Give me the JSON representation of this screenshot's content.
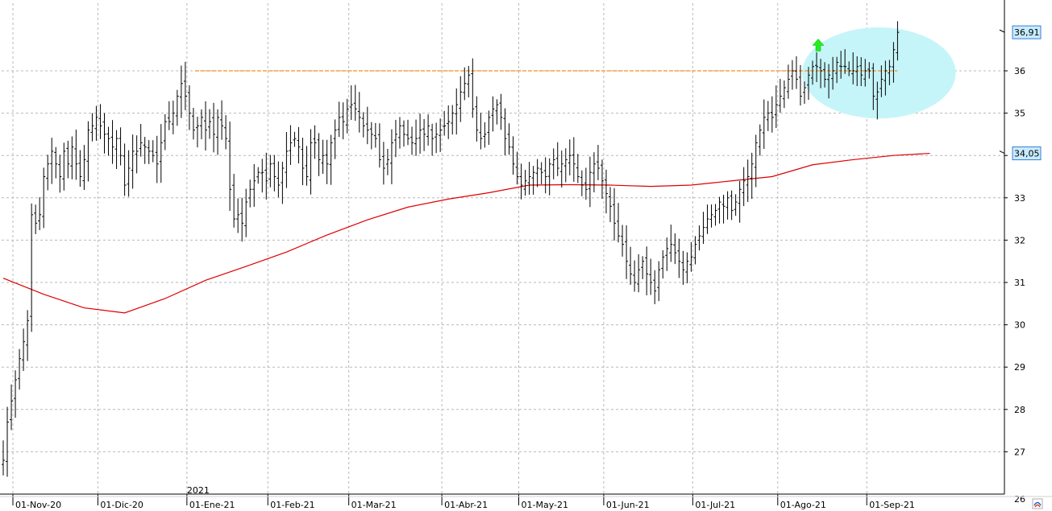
{
  "chart_data": {
    "type": "ohlc",
    "title": "",
    "xlabel": "",
    "ylabel": "",
    "ylim": [
      26,
      36.9
    ],
    "y_ticks": [
      "27",
      "28",
      "29",
      "30",
      "31",
      "32",
      "33",
      "34",
      "35",
      "36"
    ],
    "y_bottom_label": "26",
    "x_ticks": [
      {
        "label": "01-Nov-20",
        "bar": 0
      },
      {
        "label": "01-Dic-20",
        "bar": 21
      },
      {
        "label": "01-Ene-21",
        "bar": 43
      },
      {
        "label": "01-Feb-21",
        "bar": 63
      },
      {
        "label": "01-Mar-21",
        "bar": 83
      },
      {
        "label": "01-Abr-21",
        "bar": 106
      },
      {
        "label": "01-May-21",
        "bar": 125
      },
      {
        "label": "01-Jun-21",
        "bar": 146
      },
      {
        "label": "01-Jul-21",
        "bar": 168
      },
      {
        "label": "01-Ago-21",
        "bar": 189
      },
      {
        "label": "01-Sep-21",
        "bar": 211
      }
    ],
    "year_label": {
      "label": "2021",
      "bar": 43
    },
    "last_price_label": "36,91",
    "ma_price_label": "34,05",
    "resistance_level": 36.0,
    "resistance_from_bar": 47,
    "highlight": {
      "from_bar": 203,
      "to_bar": 229,
      "low": 34.95,
      "high": 36.95
    },
    "closes": [
      26.8,
      27.7,
      28.2,
      28.7,
      29.2,
      29.6,
      30.1,
      32.6,
      32.4,
      32.6,
      33.5,
      33.8,
      34.1,
      33.8,
      33.5,
      34.1,
      33.8,
      34.2,
      33.8,
      33.5,
      33.9,
      34.6,
      34.7,
      34.9,
      34.7,
      34.5,
      34.4,
      34.2,
      34.4,
      34.0,
      33.3,
      33.7,
      34.1,
      34.1,
      34.3,
      34.2,
      34.1,
      34.0,
      33.8,
      34.3,
      34.8,
      34.8,
      35.0,
      35.4,
      35.7,
      35.4,
      35.0,
      34.6,
      34.7,
      34.9,
      34.6,
      34.8,
      34.5,
      34.9,
      34.7,
      34.4,
      33.2,
      32.5,
      32.6,
      32.4,
      32.9,
      33.2,
      33.4,
      33.6,
      33.6,
      33.4,
      33.8,
      33.5,
      33.3,
      33.7,
      34.1,
      34.3,
      34.4,
      34.2,
      33.7,
      33.5,
      34.3,
      34.3,
      33.9,
      34.0,
      33.8,
      34.3,
      34.6,
      34.9,
      34.8,
      35.1,
      35.2,
      35.1,
      34.9,
      34.7,
      34.6,
      34.5,
      34.4,
      33.9,
      33.7,
      33.9,
      34.3,
      34.5,
      34.7,
      34.5,
      34.4,
      34.3,
      34.4,
      34.6,
      34.5,
      34.7,
      34.4,
      34.5,
      34.6,
      34.7,
      34.8,
      35.0,
      35.2,
      35.5,
      35.7,
      35.9,
      35.1,
      34.6,
      34.4,
      34.5,
      34.9,
      35.1,
      35.2,
      34.9,
      34.4,
      34.2,
      33.8,
      33.5,
      33.3,
      33.4,
      33.5,
      33.6,
      33.7,
      33.6,
      33.5,
      33.8,
      33.9,
      33.7,
      33.8,
      33.9,
      34.0,
      33.8,
      33.5,
      33.3,
      33.2,
      33.6,
      33.8,
      33.7,
      33.4,
      33.1,
      32.8,
      32.4,
      32.1,
      31.9,
      31.5,
      31.2,
      31.0,
      31.3,
      31.5,
      31.2,
      31.0,
      30.8,
      31.3,
      31.6,
      31.8,
      31.9,
      31.7,
      31.5,
      31.3,
      31.5,
      31.6,
      31.9,
      32.1,
      32.3,
      32.5,
      32.6,
      32.7,
      32.9,
      32.8,
      33.0,
      32.7,
      32.9,
      33.2,
      33.4,
      33.5,
      33.8,
      34.3,
      34.6,
      34.9,
      35.0,
      34.9,
      35.2,
      35.4,
      35.6,
      35.8,
      36.0,
      35.8,
      35.4,
      35.6,
      35.9,
      36.1,
      36.1,
      36.0,
      35.8,
      35.9,
      36.0,
      36.2,
      36.1,
      36.1,
      36.0,
      36.0,
      36.1,
      35.9,
      36.0,
      36.0,
      35.4,
      35.5,
      35.8,
      36.0,
      36.1,
      36.5,
      36.91
    ],
    "ma_series": {
      "name": "",
      "color": "#dd0000",
      "points": [
        [
          0,
          31.1
        ],
        [
          10,
          30.72
        ],
        [
          20,
          30.4
        ],
        [
          30,
          30.28
        ],
        [
          40,
          30.62
        ],
        [
          50,
          31.05
        ],
        [
          60,
          31.38
        ],
        [
          70,
          31.72
        ],
        [
          80,
          32.12
        ],
        [
          90,
          32.48
        ],
        [
          100,
          32.78
        ],
        [
          110,
          32.97
        ],
        [
          120,
          33.12
        ],
        [
          130,
          33.3
        ],
        [
          140,
          33.31
        ],
        [
          150,
          33.3
        ],
        [
          160,
          33.27
        ],
        [
          170,
          33.3
        ],
        [
          180,
          33.4
        ],
        [
          190,
          33.5
        ],
        [
          200,
          33.78
        ],
        [
          210,
          33.9
        ],
        [
          220,
          34.0
        ],
        [
          229,
          34.05
        ]
      ]
    },
    "colors": {
      "bars": "#000000",
      "resistance": "#f5a040",
      "highlight": "#c6f5f9",
      "arrow": "#22ee22",
      "price_tag": "#c8ecff",
      "price_tag_border": "#3a7bd5",
      "grid": "#b8b8b8"
    },
    "grid": true,
    "arrow": {
      "direction": "up",
      "bar": 201,
      "y": 36.6
    },
    "corner_icon": "chart-settings-icon"
  }
}
